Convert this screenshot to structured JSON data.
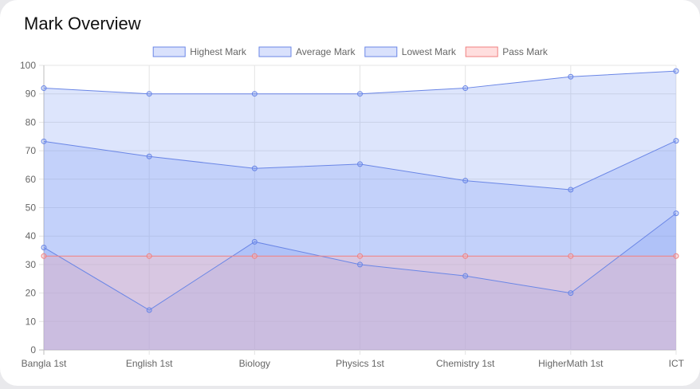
{
  "card": {
    "title": "Mark Overview"
  },
  "chart_data": {
    "type": "line",
    "title": "Mark Overview",
    "categories": [
      "Bangla 1st",
      "English 1st",
      "Biology",
      "Physics 1st",
      "Chemistry 1st",
      "HigherMath 1st",
      "ICT"
    ],
    "ylim": [
      0,
      100
    ],
    "yticks": [
      0,
      10,
      20,
      30,
      40,
      50,
      60,
      70,
      80,
      90,
      100
    ],
    "grid": true,
    "legend_position": "top-center",
    "series": [
      {
        "name": "Highest Mark",
        "values": [
          92,
          90,
          90,
          90,
          92,
          96,
          98
        ],
        "line_color": "#6a86e6",
        "fill_color": "rgba(120,150,245,0.25)"
      },
      {
        "name": "Average Mark",
        "values": [
          73.3,
          68,
          63.8,
          65.3,
          59.5,
          56.3,
          73.5
        ],
        "line_color": "#6a86e6",
        "fill_color": "rgba(120,150,245,0.25)"
      },
      {
        "name": "Lowest Mark",
        "values": [
          36,
          14,
          38,
          30,
          26,
          20,
          48
        ],
        "line_color": "#6a86e6",
        "fill_color": "rgba(120,150,245,0.25)"
      },
      {
        "name": "Pass Mark",
        "values": [
          33,
          33,
          33,
          33,
          33,
          33,
          33
        ],
        "line_color": "#f08080",
        "fill_color": "rgba(255,180,180,0.35)"
      }
    ]
  }
}
